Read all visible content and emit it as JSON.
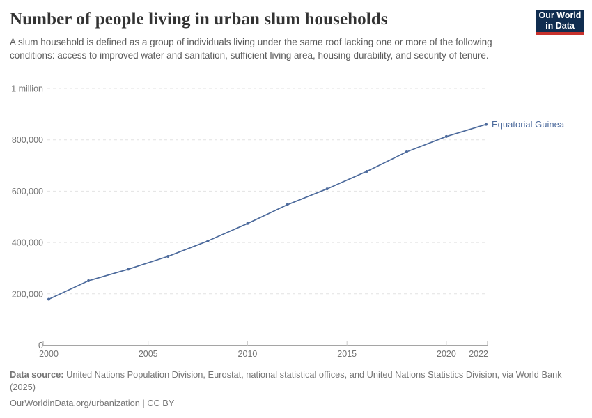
{
  "header": {
    "title": "Number of people living in urban slum households",
    "subtitle": "A slum household is defined as a group of individuals living under the same roof lacking one or more of the following conditions: access to improved water and sanitation, sufficient living area, housing durability, and security of tenure.",
    "logo": {
      "line1": "Our World",
      "line2": "in Data",
      "bg_color": "#102d50",
      "accent_color": "#c8322d"
    }
  },
  "chart_data": {
    "type": "line",
    "title": "Number of people living in urban slum households",
    "x": [
      2000,
      2002,
      2004,
      2006,
      2008,
      2010,
      2012,
      2014,
      2016,
      2018,
      2020,
      2022
    ],
    "series": [
      {
        "name": "Equatorial Guinea",
        "color": "#4C6A9C",
        "values": [
          179000,
          251000,
          296000,
          346000,
          406000,
          474000,
          547000,
          609000,
          677000,
          753000,
          813000,
          860000
        ]
      }
    ],
    "xlim": [
      2000,
      2022
    ],
    "ylim": [
      0,
      1000000
    ],
    "yticks": [
      {
        "value": 0,
        "label": "0"
      },
      {
        "value": 200000,
        "label": "200,000"
      },
      {
        "value": 400000,
        "label": "400,000"
      },
      {
        "value": 600000,
        "label": "600,000"
      },
      {
        "value": 800000,
        "label": "800,000"
      },
      {
        "value": 1000000,
        "label": "1 million"
      }
    ],
    "xticks": [
      {
        "value": 2000,
        "label": "2000"
      },
      {
        "value": 2005,
        "label": "2005"
      },
      {
        "value": 2010,
        "label": "2010"
      },
      {
        "value": 2015,
        "label": "2015"
      },
      {
        "value": 2020,
        "label": "2020"
      },
      {
        "value": 2022,
        "label": "2022"
      }
    ],
    "grid": "horizontal-dashed",
    "legend_position": "entity-label-right-of-line",
    "colors": {
      "gridline": "#e2e2e2",
      "axis": "#a5a5a5",
      "tick_label": "#737373"
    }
  },
  "footer": {
    "source_label": "Data source:",
    "source_text": "United Nations Population Division, Eurostat, national statistical offices, and United Nations Statistics Division, via World Bank (2025)",
    "link_text": "OurWorldinData.org/urbanization | CC BY"
  }
}
